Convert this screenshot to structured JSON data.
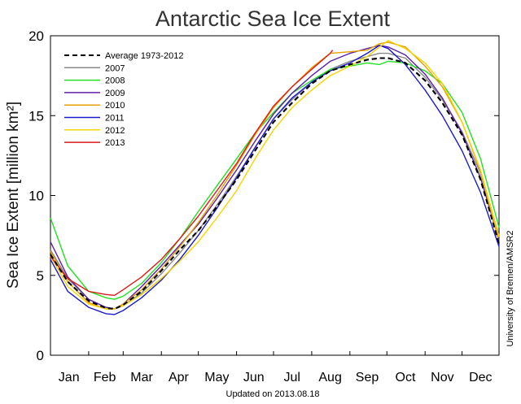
{
  "chart_data": {
    "type": "line",
    "title": "Antarctic Sea Ice Extent",
    "ylabel": "Sea Ice Extent [million km²]",
    "credit": "University of Bremen/AMSR2",
    "updated": "Updated on 2013.08.18",
    "x_unit": "day of year",
    "xlim": [
      1,
      365
    ],
    "ylim": [
      0,
      20
    ],
    "y_ticks": [
      0,
      5,
      10,
      15,
      20
    ],
    "months": [
      "Jan",
      "Feb",
      "Mar",
      "Apr",
      "May",
      "Jun",
      "Jul",
      "Aug",
      "Sep",
      "Oct",
      "Nov",
      "Dec"
    ],
    "month_centers": [
      16,
      45,
      75,
      105,
      136,
      166,
      197,
      228,
      258,
      289,
      319,
      350
    ],
    "legend_position": "top-left",
    "series": [
      {
        "name": "Average 1973-2012",
        "color": "#000000",
        "dashed": true,
        "x": [
          1,
          15,
          32,
          46,
          53,
          60,
          75,
          91,
          106,
          121,
          136,
          152,
          167,
          182,
          197,
          213,
          228,
          244,
          258,
          268,
          275,
          289,
          305,
          319,
          335,
          350,
          365
        ],
        "y": [
          6.3,
          4.6,
          3.4,
          2.95,
          2.9,
          3.15,
          4.0,
          5.3,
          6.6,
          7.8,
          9.3,
          11.0,
          12.8,
          14.6,
          15.8,
          17.0,
          17.8,
          18.2,
          18.5,
          18.6,
          18.6,
          18.3,
          17.2,
          15.8,
          13.8,
          11.0,
          7.0
        ]
      },
      {
        "name": "2007",
        "color": "#888888",
        "dashed": false,
        "x": [
          1,
          15,
          32,
          46,
          53,
          60,
          75,
          91,
          106,
          121,
          136,
          152,
          167,
          182,
          197,
          213,
          228,
          244,
          258,
          268,
          275,
          289,
          305,
          319,
          335,
          350,
          365
        ],
        "y": [
          6.6,
          4.8,
          3.5,
          3.0,
          2.9,
          3.1,
          3.9,
          5.1,
          6.4,
          7.8,
          9.4,
          11.2,
          13.0,
          14.8,
          16.0,
          17.1,
          17.9,
          18.4,
          18.7,
          18.9,
          18.9,
          18.6,
          17.4,
          16.0,
          14.0,
          11.4,
          7.5
        ]
      },
      {
        "name": "2008",
        "color": "#22e022",
        "dashed": false,
        "x": [
          1,
          15,
          32,
          46,
          53,
          60,
          75,
          91,
          106,
          121,
          136,
          152,
          167,
          182,
          197,
          213,
          228,
          244,
          258,
          268,
          275,
          289,
          305,
          319,
          335,
          350,
          365
        ],
        "y": [
          8.6,
          5.6,
          4.0,
          3.6,
          3.5,
          3.7,
          4.5,
          5.8,
          7.3,
          9.0,
          10.6,
          12.3,
          13.9,
          15.2,
          16.4,
          17.2,
          17.9,
          18.1,
          18.3,
          18.2,
          18.4,
          18.3,
          17.8,
          17.0,
          15.2,
          12.3,
          8.0
        ]
      },
      {
        "name": "2009",
        "color": "#5a1fa8",
        "dashed": false,
        "x": [
          1,
          15,
          32,
          46,
          53,
          60,
          75,
          91,
          106,
          121,
          136,
          152,
          167,
          182,
          197,
          213,
          228,
          244,
          258,
          268,
          275,
          289,
          305,
          319,
          335,
          350,
          365
        ],
        "y": [
          7.1,
          4.9,
          3.5,
          3.0,
          2.9,
          3.2,
          4.3,
          5.6,
          6.9,
          8.2,
          9.8,
          11.6,
          13.4,
          15.1,
          16.4,
          17.5,
          18.4,
          18.9,
          19.2,
          19.4,
          19.3,
          18.8,
          17.6,
          16.1,
          13.9,
          11.1,
          7.2
        ]
      },
      {
        "name": "2010",
        "color": "#e6a000",
        "dashed": false,
        "x": [
          1,
          15,
          32,
          46,
          53,
          60,
          75,
          91,
          106,
          121,
          136,
          152,
          167,
          182,
          197,
          213,
          228,
          244,
          258,
          268,
          275,
          289,
          305,
          319,
          335,
          350,
          365
        ],
        "y": [
          6.5,
          4.6,
          3.3,
          2.9,
          2.9,
          3.2,
          4.1,
          5.4,
          6.8,
          8.3,
          10.0,
          11.9,
          13.8,
          15.5,
          16.8,
          18.0,
          18.9,
          19.0,
          19.1,
          19.5,
          19.6,
          19.3,
          18.1,
          16.8,
          14.6,
          11.5,
          7.1
        ]
      },
      {
        "name": "2011",
        "color": "#1a1acc",
        "dashed": false,
        "x": [
          1,
          15,
          32,
          46,
          53,
          60,
          75,
          91,
          106,
          121,
          136,
          152,
          167,
          182,
          197,
          213,
          228,
          244,
          258,
          268,
          275,
          289,
          305,
          319,
          335,
          350,
          365
        ],
        "y": [
          6.0,
          4.0,
          3.0,
          2.6,
          2.55,
          2.8,
          3.6,
          4.7,
          6.0,
          7.5,
          9.2,
          11.1,
          13.0,
          14.8,
          16.1,
          17.1,
          17.8,
          18.3,
          18.9,
          19.4,
          19.2,
          18.2,
          16.6,
          15.0,
          12.8,
          10.2,
          6.8
        ]
      },
      {
        "name": "2012",
        "color": "#f5d400",
        "dashed": false,
        "x": [
          1,
          15,
          32,
          46,
          53,
          60,
          75,
          91,
          106,
          121,
          136,
          152,
          167,
          182,
          197,
          213,
          228,
          244,
          258,
          268,
          275,
          289,
          305,
          319,
          335,
          350,
          365
        ],
        "y": [
          6.2,
          4.3,
          3.2,
          2.9,
          2.9,
          3.1,
          3.8,
          4.8,
          5.9,
          7.1,
          8.6,
          10.3,
          12.3,
          14.1,
          15.5,
          16.6,
          17.5,
          18.1,
          18.7,
          19.3,
          19.7,
          19.2,
          18.3,
          17.0,
          14.6,
          11.6,
          7.4
        ]
      },
      {
        "name": "2013",
        "color": "#dd1a1a",
        "dashed": false,
        "x": [
          1,
          15,
          32,
          46,
          53,
          60,
          75,
          91,
          106,
          121,
          136,
          152,
          167,
          182,
          197,
          213,
          228,
          230
        ],
        "y": [
          6.2,
          4.8,
          4.0,
          3.8,
          3.75,
          4.1,
          4.9,
          6.0,
          7.3,
          8.7,
          10.3,
          12.0,
          13.9,
          15.6,
          16.8,
          17.9,
          18.9,
          19.1
        ]
      }
    ]
  }
}
